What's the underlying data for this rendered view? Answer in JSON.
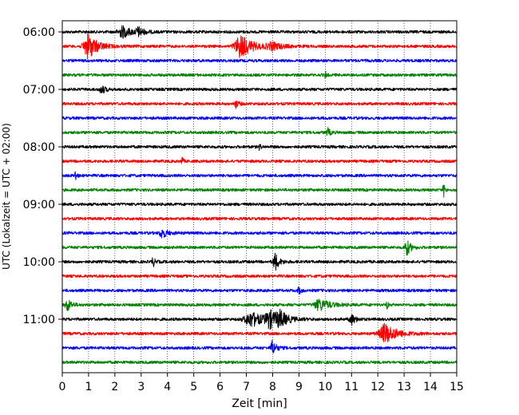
{
  "chart_data": {
    "type": "line",
    "title": "",
    "xlabel": "Zeit  [min]",
    "ylabel": "UTC (Lokalzeit = UTC + 02:00)",
    "xlim": [
      0,
      15
    ],
    "x_ticks": [
      "0",
      "1",
      "2",
      "3",
      "4",
      "5",
      "6",
      "7",
      "8",
      "9",
      "10",
      "11",
      "12",
      "13",
      "14",
      "15"
    ],
    "y_ticks": [
      "06:00",
      "07:00",
      "08:00",
      "09:00",
      "10:00",
      "11:00"
    ],
    "grid": "vertical dotted at each minute",
    "trace_colors": [
      "#000000",
      "#ff0000",
      "#0000ff",
      "#008000"
    ],
    "series": [
      {
        "label": "06:00",
        "color": "#000000",
        "events": [
          {
            "t": 2.3,
            "amp": 7,
            "w": 0.35
          },
          {
            "t": 2.9,
            "amp": 5,
            "w": 0.2
          }
        ]
      },
      {
        "label": "06:15",
        "color": "#ff0000",
        "events": [
          {
            "t": 1.0,
            "amp": 16,
            "w": 0.35
          },
          {
            "t": 6.8,
            "amp": 14,
            "w": 0.45
          },
          {
            "t": 8.0,
            "amp": 4,
            "w": 0.4
          }
        ]
      },
      {
        "label": "06:30",
        "color": "#0000ff",
        "events": []
      },
      {
        "label": "06:45",
        "color": "#008000",
        "events": [
          {
            "t": 10.0,
            "amp": 5,
            "w": 0.05
          }
        ]
      },
      {
        "label": "07:00",
        "color": "#000000",
        "events": [
          {
            "t": 1.5,
            "amp": 5,
            "w": 0.15
          }
        ]
      },
      {
        "label": "07:15",
        "color": "#ff0000",
        "events": [
          {
            "t": 6.6,
            "amp": 5,
            "w": 0.1
          }
        ]
      },
      {
        "label": "07:30",
        "color": "#0000ff",
        "events": []
      },
      {
        "label": "07:45",
        "color": "#008000",
        "events": [
          {
            "t": 10.1,
            "amp": 5,
            "w": 0.1
          }
        ]
      },
      {
        "label": "08:00",
        "color": "#000000",
        "events": [
          {
            "t": 7.5,
            "amp": 4,
            "w": 0.05
          }
        ]
      },
      {
        "label": "08:15",
        "color": "#ff0000",
        "events": [
          {
            "t": 4.55,
            "amp": 13,
            "w": 0.03
          }
        ]
      },
      {
        "label": "08:30",
        "color": "#0000ff",
        "events": [
          {
            "t": 0.5,
            "amp": 7,
            "w": 0.05
          }
        ]
      },
      {
        "label": "08:45",
        "color": "#008000",
        "events": [
          {
            "t": 14.5,
            "amp": 10,
            "w": 0.05
          }
        ]
      },
      {
        "label": "09:00",
        "color": "#000000",
        "events": []
      },
      {
        "label": "09:15",
        "color": "#ff0000",
        "events": []
      },
      {
        "label": "09:30",
        "color": "#0000ff",
        "events": [
          {
            "t": 3.8,
            "amp": 6,
            "w": 0.2
          }
        ]
      },
      {
        "label": "09:45",
        "color": "#008000",
        "events": [
          {
            "t": 13.1,
            "amp": 10,
            "w": 0.15
          }
        ]
      },
      {
        "label": "10:00",
        "color": "#000000",
        "events": [
          {
            "t": 3.45,
            "amp": 6,
            "w": 0.08
          },
          {
            "t": 8.1,
            "amp": 11,
            "w": 0.15
          }
        ]
      },
      {
        "label": "10:15",
        "color": "#ff0000",
        "events": []
      },
      {
        "label": "10:30",
        "color": "#0000ff",
        "events": [
          {
            "t": 9.0,
            "amp": 5,
            "w": 0.08
          }
        ]
      },
      {
        "label": "10:45",
        "color": "#008000",
        "events": [
          {
            "t": 0.2,
            "amp": 8,
            "w": 0.15
          },
          {
            "t": 9.8,
            "amp": 7,
            "w": 0.4
          },
          {
            "t": 12.35,
            "amp": 9,
            "w": 0.03
          }
        ]
      },
      {
        "label": "11:00",
        "color": "#000000",
        "events": [
          {
            "t": 7.2,
            "amp": 9,
            "w": 0.5
          },
          {
            "t": 7.9,
            "amp": 10,
            "w": 0.3
          },
          {
            "t": 8.3,
            "amp": 8,
            "w": 0.3
          },
          {
            "t": 11.0,
            "amp": 7,
            "w": 0.15
          }
        ]
      },
      {
        "label": "11:15",
        "color": "#ff0000",
        "events": [
          {
            "t": 12.3,
            "amp": 12,
            "w": 0.45
          }
        ]
      },
      {
        "label": "11:30",
        "color": "#0000ff",
        "events": [
          {
            "t": 8.0,
            "amp": 9,
            "w": 0.15
          }
        ]
      },
      {
        "label": "11:45",
        "color": "#008000",
        "events": []
      }
    ]
  }
}
